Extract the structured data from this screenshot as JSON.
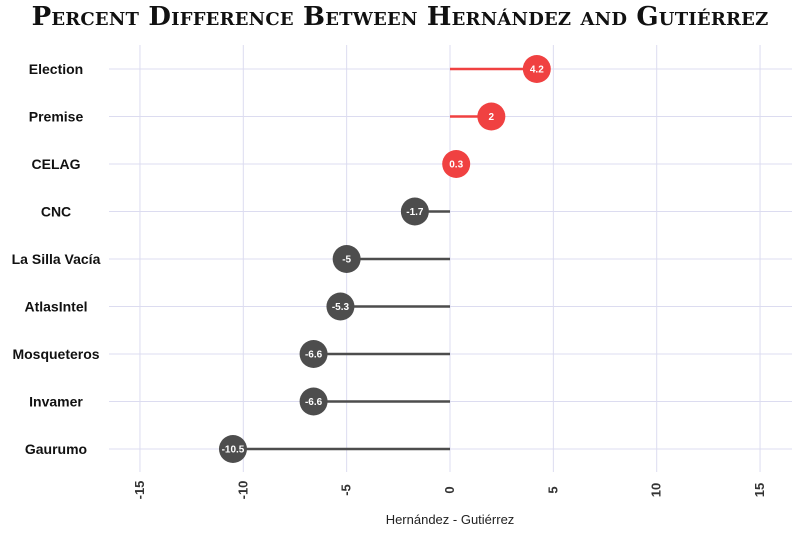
{
  "chart_data": {
    "type": "lollipop",
    "title": "Percent Difference Between Hernández and Gutiérrez",
    "xlabel": "Hernández - Gutiérrez",
    "ylabel": "",
    "xlim": [
      -16.5,
      16.5
    ],
    "xticks": [
      -15,
      -10,
      -5,
      0,
      5,
      10,
      15
    ],
    "grid": true,
    "legend": "none",
    "categories": [
      "Election",
      "Premise",
      "CELAG",
      "CNC",
      "La Silla Vacía",
      "AtlasIntel",
      "Mosqueteros",
      "Invamer",
      "Gaurumo"
    ],
    "values": [
      4.2,
      2,
      0.3,
      -1.7,
      -5,
      -5.3,
      -6.6,
      -6.6,
      -10.5
    ],
    "value_labels": [
      "4.2",
      "2",
      "0.3",
      "-1.7",
      "-5",
      "-5.3",
      "-6.6",
      "-6.6",
      "-10.5"
    ],
    "colors": {
      "positive": "#f04141",
      "negative": "#4d4d4d",
      "grid": "#dcdcf0"
    }
  }
}
